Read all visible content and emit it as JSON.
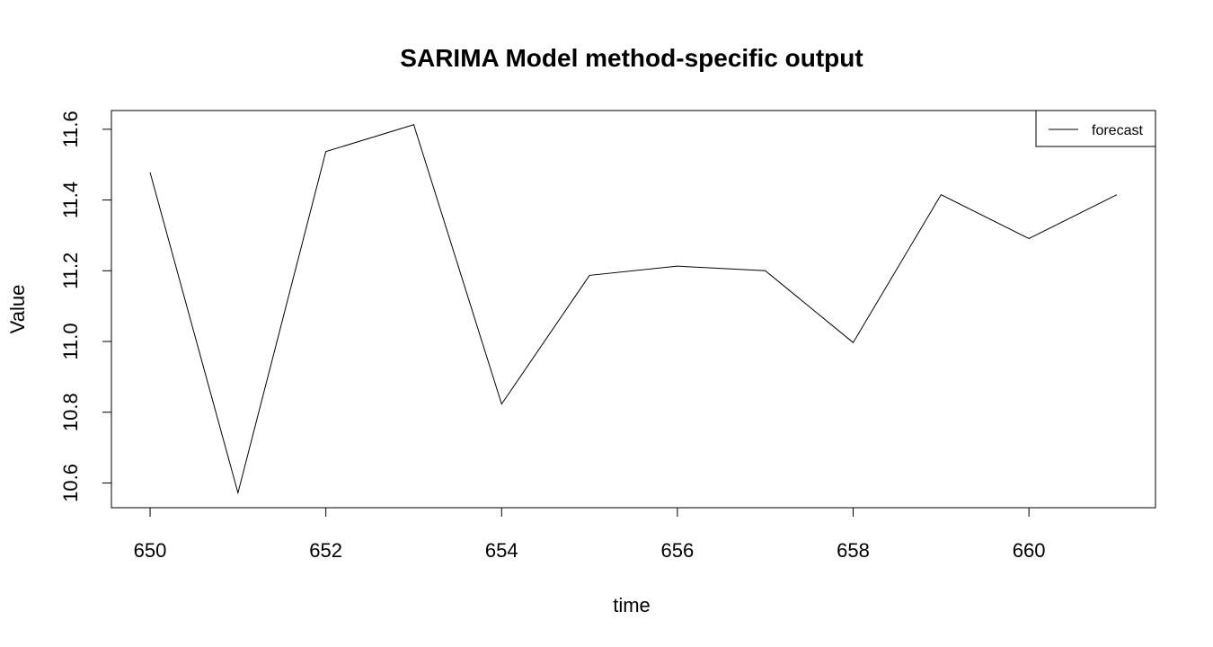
{
  "chart_data": {
    "type": "line",
    "title": "SARIMA Model method-specific output",
    "x_label": "time",
    "y_label": "Value",
    "x": [
      650,
      651,
      652,
      653,
      654,
      655,
      656,
      657,
      658,
      659,
      660,
      661
    ],
    "series": [
      {
        "name": "forecast",
        "color": "#000000",
        "values": [
          11.478,
          10.572,
          11.537,
          11.613,
          10.823,
          11.187,
          11.213,
          11.2,
          10.997,
          11.415,
          11.291,
          11.415
        ]
      }
    ],
    "xlim": [
      649.56,
      661.44
    ],
    "xticks": [
      650,
      652,
      654,
      656,
      658,
      660
    ],
    "ylim": [
      10.53,
      11.653
    ],
    "yticks": [
      10.6,
      10.8,
      {
        "value": 11.0,
        "label": "11.0"
      },
      11.2,
      11.4,
      11.6
    ],
    "legend": "top-right"
  }
}
